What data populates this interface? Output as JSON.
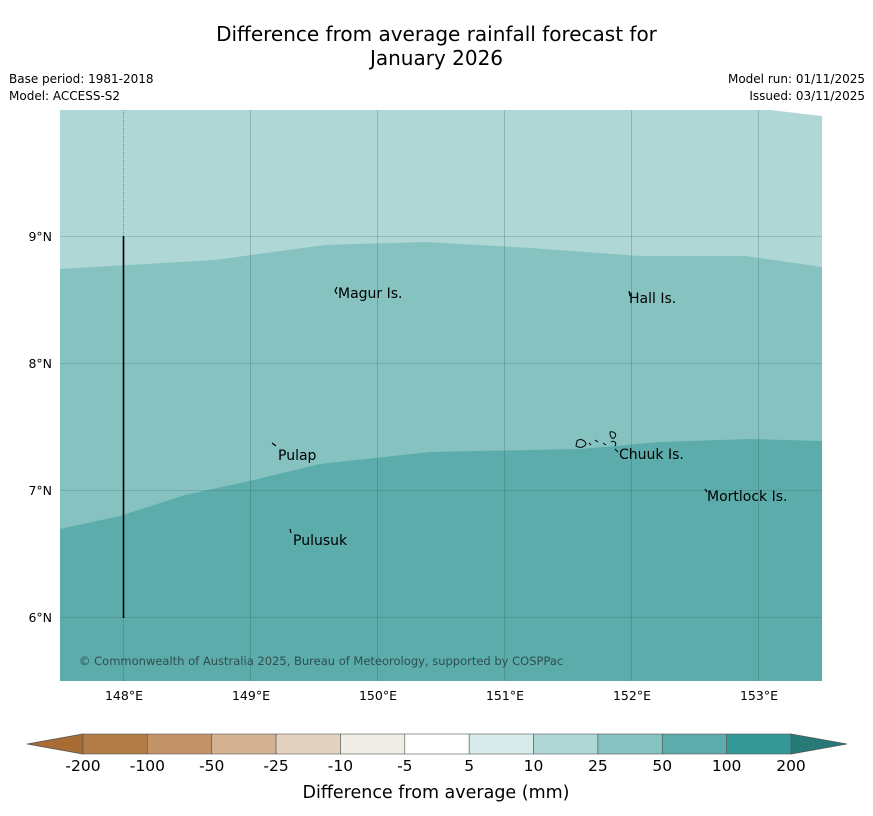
{
  "title": {
    "line1": "Difference from average rainfall forecast for",
    "line2": "January 2026"
  },
  "meta": {
    "base_period": "Base period: 1981-2018",
    "model": "Model: ACCESS-S2",
    "model_run": "Model run: 01/11/2025",
    "issued": "Issued: 03/11/2025"
  },
  "map": {
    "lon_labels": [
      "148°E",
      "149°E",
      "150°E",
      "151°E",
      "152°E",
      "153°E"
    ],
    "lat_labels": [
      "9°N",
      "8°N",
      "7°N",
      "6°N"
    ],
    "places": [
      "Magur Is.",
      "Hall Is.",
      "Pulap",
      "Chuuk Is.",
      "Mortlock Is.",
      "Pulusuk"
    ],
    "copyright": "© Commonwealth of Australia 2025, Bureau of Meteorology, supported by COSPPac",
    "colors": {
      "band_10_25": "#aed7d6",
      "band_25_50": "#85c2c0",
      "band_50_100": "#5cacab"
    }
  },
  "legend": {
    "ticks": [
      "-200",
      "-100",
      "-50",
      "-25",
      "-10",
      "-5",
      "5",
      "10",
      "25",
      "50",
      "100",
      "200"
    ],
    "title": "Difference from average (mm)",
    "colors": [
      "#a86b32",
      "#b17c48",
      "#c29468",
      "#d3b293",
      "#e4d2c0",
      "#f0ede7",
      "#ffffff",
      "#d6ebea",
      "#aed7d6",
      "#85c2c0",
      "#5cacab",
      "#349896",
      "#267a78"
    ]
  }
}
